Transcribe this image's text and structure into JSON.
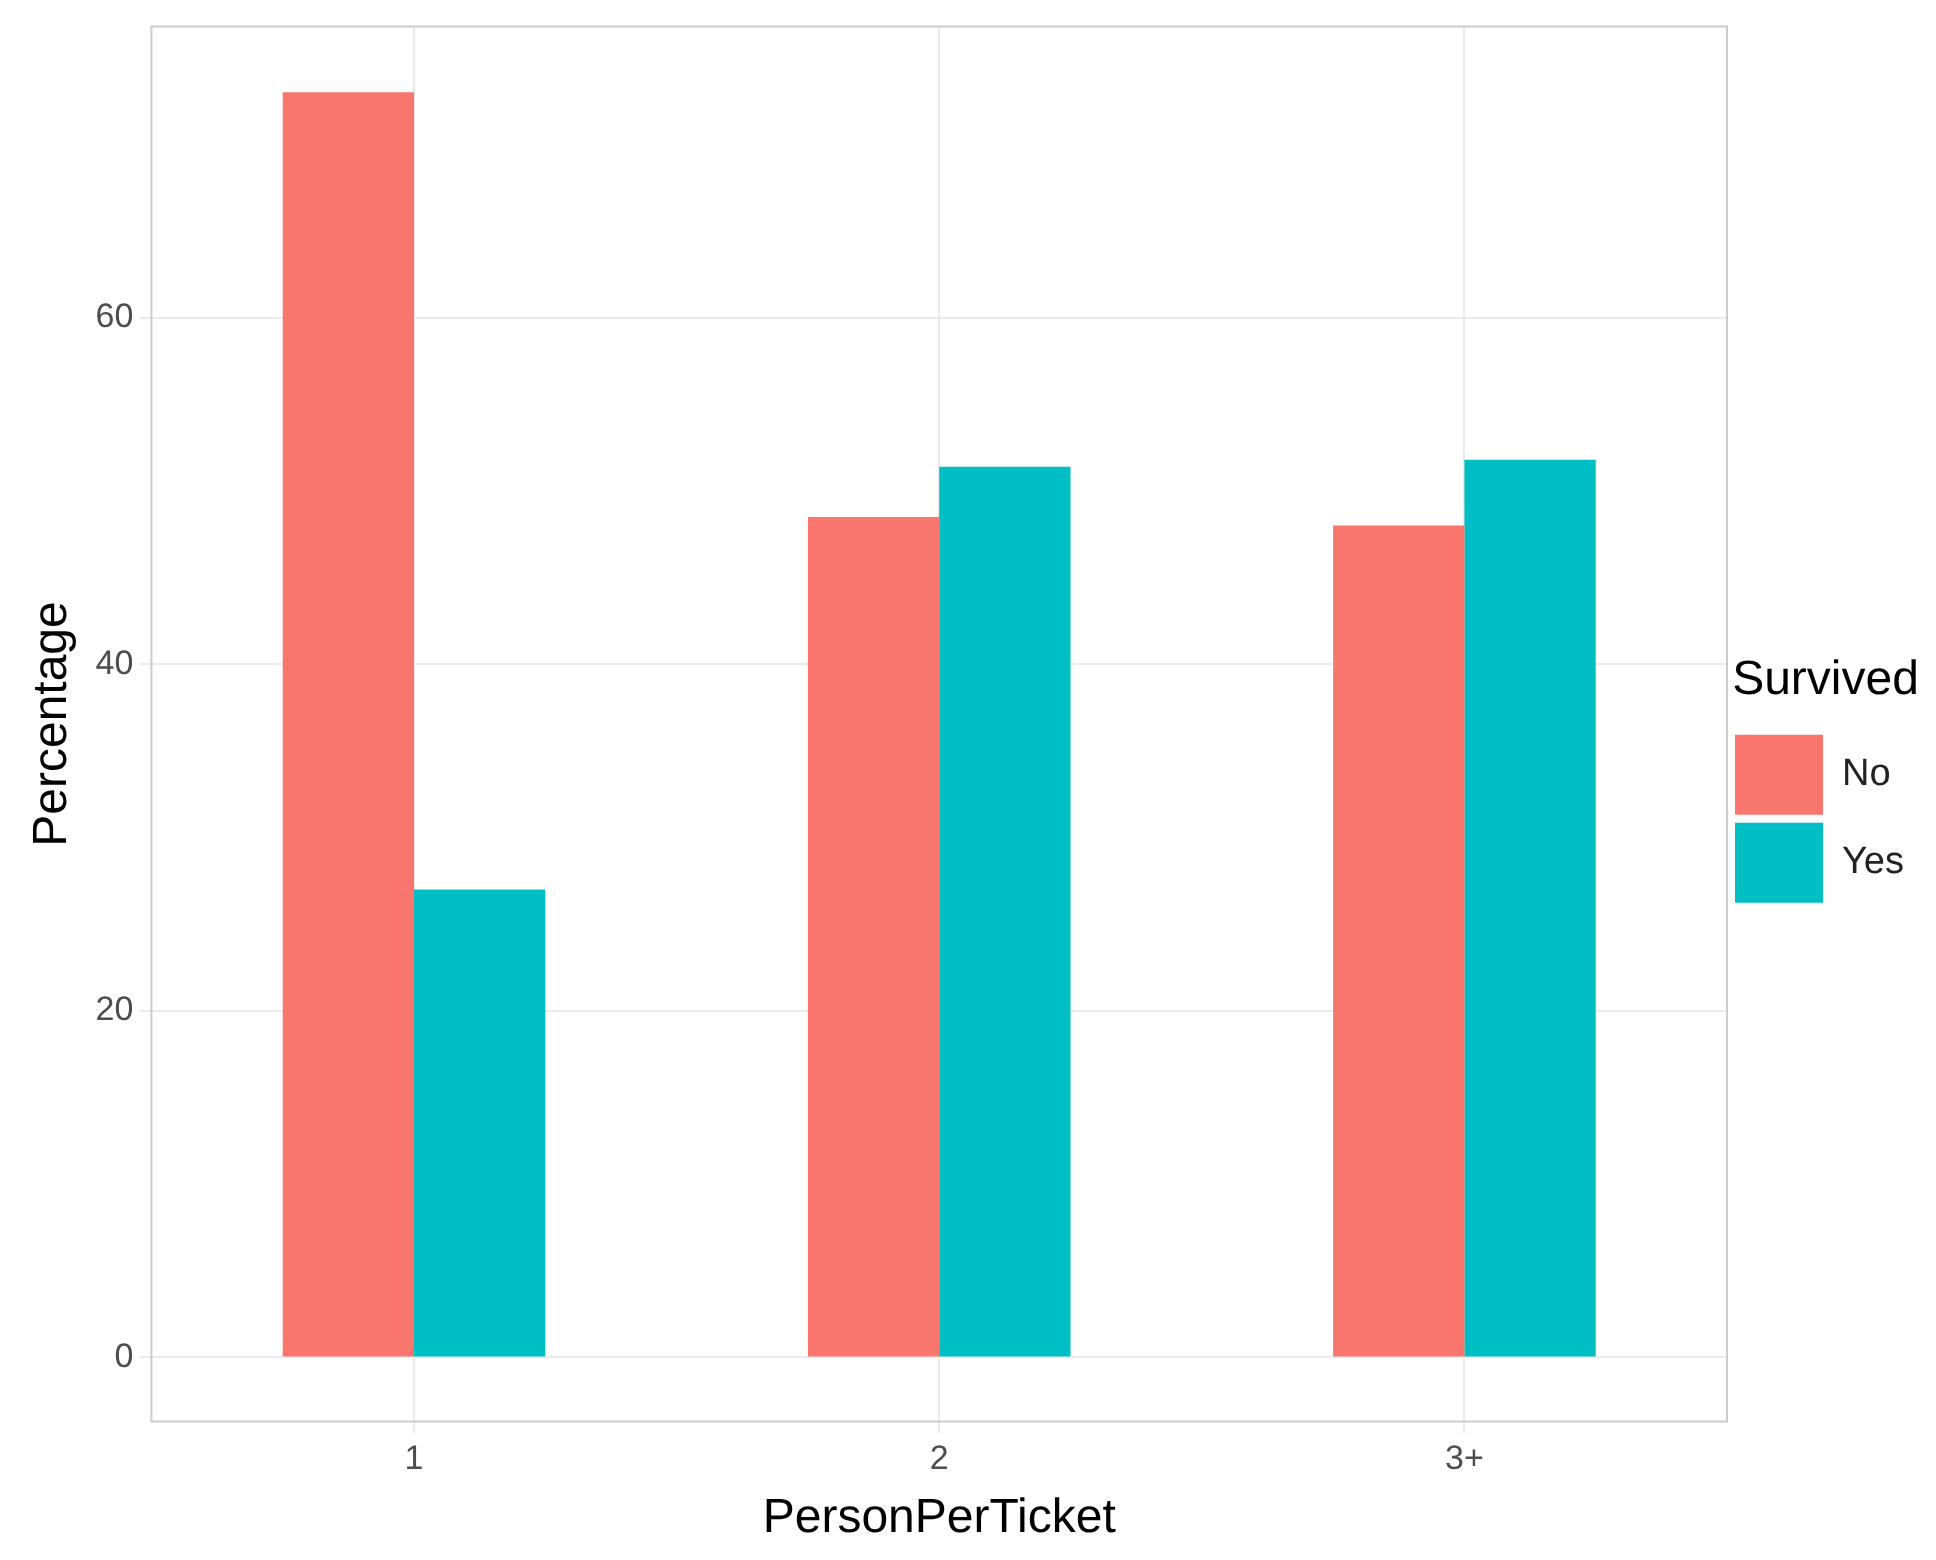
{
  "chart_data": {
    "type": "bar",
    "xlabel": "PersonPerTicket",
    "ylabel": "Percentage",
    "legend_title": "Survived",
    "categories": [
      "1",
      "2",
      "3+"
    ],
    "series": [
      {
        "name": "No",
        "color": "#f8766d",
        "values": [
          73,
          48.5,
          48
        ]
      },
      {
        "name": "Yes",
        "color": "#00bfc4",
        "values": [
          27,
          51.4,
          51.8
        ]
      }
    ],
    "ylim": [
      -3.7,
      76.8
    ],
    "yticks": [
      0,
      20,
      40,
      60
    ],
    "grid": true,
    "legend": "right"
  }
}
